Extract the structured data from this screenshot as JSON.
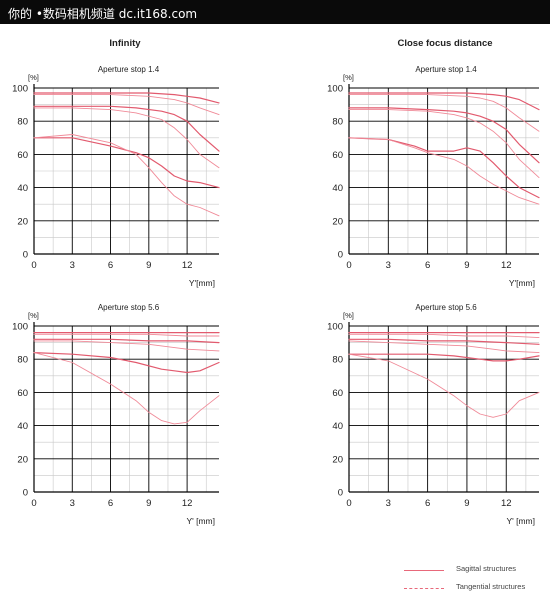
{
  "banner": {
    "text": "你的 •数码相机频道  dc.it168.com",
    "bg_color": "#0a0a0a",
    "text_color": "#ffffff"
  },
  "column_titles": {
    "left": "Infinity",
    "right": "Close focus distance"
  },
  "legend": {
    "sagittal_label": "Sagittal structures",
    "tangential_label": "Tangential structures",
    "color": "#e8687a"
  },
  "colors": {
    "sagittal": "#e25a6e",
    "tangential": "#f08a98",
    "grid_minor": "#c8c8c8",
    "grid_major": "#000000"
  },
  "chart_data": [
    {
      "type": "line",
      "title": "Aperture stop 1.4",
      "ylabel_text": "[%]",
      "xlabel": "Y'[mm]",
      "xlim": [
        0,
        14.5
      ],
      "ylim": [
        0,
        100
      ],
      "xticks": [
        0,
        3,
        6,
        9,
        12
      ],
      "yticks": [
        0,
        20,
        40,
        60,
        80,
        100
      ],
      "grid": true,
      "series": [
        {
          "style": "sagittal",
          "x": [
            0,
            3,
            6,
            9,
            11,
            12,
            13,
            14.5
          ],
          "values": [
            97,
            97,
            97,
            97,
            96,
            95,
            94,
            91
          ]
        },
        {
          "style": "tangential",
          "x": [
            0,
            3,
            6,
            9,
            11,
            12,
            13,
            14.5
          ],
          "values": [
            96,
            96,
            96,
            95,
            93,
            91,
            88,
            84
          ]
        },
        {
          "style": "sagittal",
          "x": [
            0,
            3,
            6,
            8,
            10,
            11,
            12,
            13,
            14.5
          ],
          "values": [
            89,
            89,
            89,
            88,
            86,
            84,
            80,
            72,
            62
          ]
        },
        {
          "style": "tangential",
          "x": [
            0,
            3,
            6,
            8,
            10,
            11,
            12,
            13,
            14.5
          ],
          "values": [
            88,
            88,
            87,
            85,
            81,
            76,
            69,
            60,
            52
          ]
        },
        {
          "style": "sagittal",
          "x": [
            0,
            3,
            6,
            8,
            9,
            10,
            11,
            12,
            13,
            14.5
          ],
          "values": [
            70,
            70,
            65,
            61,
            58,
            53,
            47,
            44,
            43,
            40
          ]
        },
        {
          "style": "tangential",
          "x": [
            0,
            3,
            6,
            8,
            9,
            10,
            11,
            12,
            13,
            14.5
          ],
          "values": [
            70,
            72,
            67,
            60,
            52,
            43,
            35,
            30,
            28,
            23
          ]
        }
      ]
    },
    {
      "type": "line",
      "title": "Aperture stop 1.4",
      "ylabel_text": "[%]",
      "xlabel": "Y'[mm]",
      "xlim": [
        0,
        14.5
      ],
      "ylim": [
        0,
        100
      ],
      "xticks": [
        0,
        3,
        6,
        9,
        12
      ],
      "yticks": [
        0,
        20,
        40,
        60,
        80,
        100
      ],
      "grid": true,
      "series": [
        {
          "style": "sagittal",
          "x": [
            0,
            3,
            6,
            9,
            11,
            12,
            13,
            14.5
          ],
          "values": [
            97,
            97,
            97,
            97,
            96,
            95,
            93,
            87
          ]
        },
        {
          "style": "tangential",
          "x": [
            0,
            3,
            6,
            9,
            10,
            11,
            12,
            13,
            14.5
          ],
          "values": [
            96,
            96,
            96,
            95,
            94,
            92,
            88,
            82,
            74
          ]
        },
        {
          "style": "sagittal",
          "x": [
            0,
            3,
            6,
            8,
            9,
            10,
            11,
            12,
            13,
            14.5
          ],
          "values": [
            88,
            88,
            87,
            86,
            85,
            83,
            80,
            75,
            66,
            55
          ]
        },
        {
          "style": "tangential",
          "x": [
            0,
            3,
            6,
            8,
            9,
            10,
            11,
            12,
            13,
            14.5
          ],
          "values": [
            87,
            87,
            86,
            84,
            82,
            79,
            74,
            67,
            57,
            46
          ]
        },
        {
          "style": "sagittal",
          "x": [
            0,
            3,
            5,
            6,
            8,
            9,
            10,
            11,
            12,
            13,
            14.5
          ],
          "values": [
            70,
            69,
            65,
            62,
            62,
            64,
            62,
            55,
            47,
            40,
            34
          ]
        },
        {
          "style": "tangential",
          "x": [
            0,
            3,
            5,
            6,
            8,
            9,
            10,
            11,
            12,
            13,
            14.5
          ],
          "values": [
            70,
            69,
            64,
            61,
            57,
            53,
            47,
            42,
            38,
            34,
            30
          ]
        }
      ]
    },
    {
      "type": "line",
      "title": "Aperture stop 5.6",
      "ylabel_text": "[%]",
      "xlabel": "Y' [mm]",
      "xlim": [
        0,
        14.5
      ],
      "ylim": [
        0,
        100
      ],
      "xticks": [
        0,
        3,
        6,
        9,
        12
      ],
      "yticks": [
        0,
        20,
        40,
        60,
        80,
        100
      ],
      "grid": true,
      "series": [
        {
          "style": "sagittal",
          "x": [
            0,
            3,
            6,
            9,
            12,
            14.5
          ],
          "values": [
            96,
            96,
            96,
            96,
            96,
            96
          ]
        },
        {
          "style": "tangential",
          "x": [
            0,
            3,
            6,
            9,
            12,
            14.5
          ],
          "values": [
            95,
            95,
            95,
            95,
            94,
            94
          ]
        },
        {
          "style": "sagittal",
          "x": [
            0,
            3,
            6,
            9,
            12,
            14.5
          ],
          "values": [
            92,
            92,
            92,
            91,
            91,
            90
          ]
        },
        {
          "style": "tangential",
          "x": [
            0,
            3,
            6,
            9,
            11,
            12,
            14.5
          ],
          "values": [
            91,
            91,
            90,
            89,
            87,
            86,
            85
          ]
        },
        {
          "style": "sagittal",
          "x": [
            0,
            3,
            6,
            8,
            10,
            11,
            12,
            13,
            14.5
          ],
          "values": [
            84,
            83,
            81,
            78,
            74,
            73,
            72,
            73,
            78
          ]
        },
        {
          "style": "tangential",
          "x": [
            0,
            3,
            6,
            8,
            9,
            10,
            11,
            12,
            13,
            14.5
          ],
          "values": [
            84,
            78,
            65,
            55,
            48,
            43,
            41,
            42,
            49,
            58
          ]
        }
      ]
    },
    {
      "type": "line",
      "title": "Aperture stop 5.6",
      "ylabel_text": "[%]",
      "xlabel": "Y' [mm]",
      "xlim": [
        0,
        14.5
      ],
      "ylim": [
        0,
        100
      ],
      "xticks": [
        0,
        3,
        6,
        9,
        12
      ],
      "yticks": [
        0,
        20,
        40,
        60,
        80,
        100
      ],
      "grid": true,
      "series": [
        {
          "style": "sagittal",
          "x": [
            0,
            3,
            6,
            9,
            12,
            14.5
          ],
          "values": [
            96,
            96,
            96,
            96,
            96,
            96
          ]
        },
        {
          "style": "tangential",
          "x": [
            0,
            3,
            6,
            9,
            12,
            14.5
          ],
          "values": [
            95,
            95,
            95,
            94,
            94,
            93
          ]
        },
        {
          "style": "sagittal",
          "x": [
            0,
            3,
            6,
            9,
            12,
            14.5
          ],
          "values": [
            92,
            92,
            91,
            91,
            90,
            89
          ]
        },
        {
          "style": "tangential",
          "x": [
            0,
            3,
            6,
            9,
            11,
            12,
            14.5
          ],
          "values": [
            91,
            90,
            89,
            88,
            86,
            85,
            84
          ]
        },
        {
          "style": "sagittal",
          "x": [
            0,
            3,
            6,
            8,
            10,
            11,
            12,
            13,
            14.5
          ],
          "values": [
            83,
            83,
            83,
            82,
            80,
            79,
            79,
            80,
            82
          ]
        },
        {
          "style": "tangential",
          "x": [
            0,
            3,
            6,
            8,
            9,
            10,
            11,
            12,
            13,
            14.5
          ],
          "values": [
            83,
            79,
            68,
            58,
            52,
            47,
            45,
            47,
            55,
            60
          ]
        }
      ]
    }
  ]
}
